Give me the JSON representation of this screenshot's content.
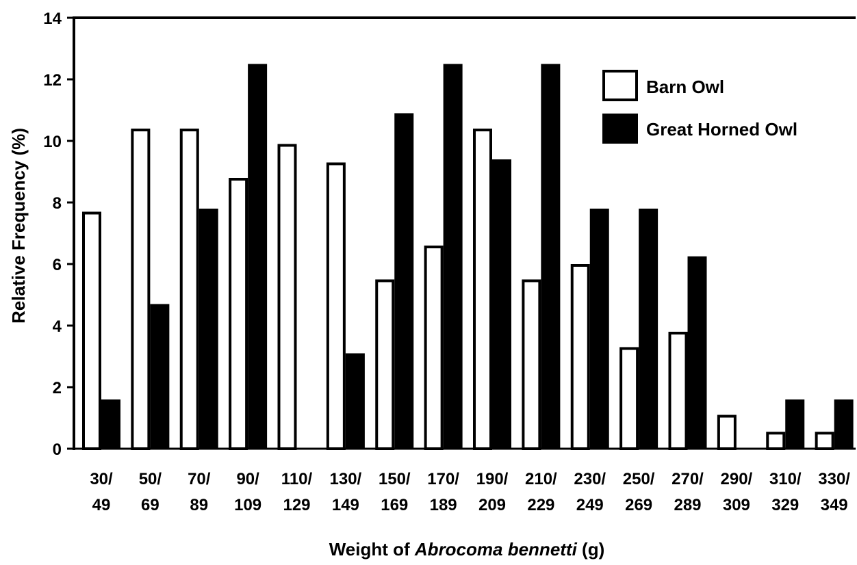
{
  "chart_data": {
    "type": "bar",
    "title": "",
    "xlabel_prefix": "Weight of ",
    "xlabel_italic": "Abrocoma bennetti",
    "xlabel_suffix": " (g)",
    "ylabel": "Relative Frequency (%)",
    "ylim": [
      0,
      14
    ],
    "yticks": [
      0,
      2,
      4,
      6,
      8,
      10,
      12,
      14
    ],
    "grid": false,
    "legend_position": "top-right",
    "categories": [
      [
        "30/",
        "49"
      ],
      [
        "50/",
        "69"
      ],
      [
        "70/",
        "89"
      ],
      [
        "90/",
        "109"
      ],
      [
        "110/",
        "129"
      ],
      [
        "130/",
        "149"
      ],
      [
        "150/",
        "169"
      ],
      [
        "170/",
        "189"
      ],
      [
        "190/",
        "209"
      ],
      [
        "210/",
        "229"
      ],
      [
        "230/",
        "249"
      ],
      [
        "250/",
        "269"
      ],
      [
        "270/",
        "289"
      ],
      [
        "290/",
        "309"
      ],
      [
        "310/",
        "329"
      ],
      [
        "330/",
        "349"
      ]
    ],
    "series": [
      {
        "name": "Barn Owl",
        "fill": "#ffffff",
        "stroke": "#000000",
        "values": [
          7.7,
          10.4,
          10.4,
          8.8,
          9.9,
          9.3,
          5.5,
          6.6,
          10.4,
          5.5,
          6.0,
          3.3,
          3.8,
          1.1,
          0.55,
          0.55
        ]
      },
      {
        "name": "Great Horned Owl",
        "fill": "#000000",
        "stroke": "#000000",
        "values": [
          1.6,
          4.7,
          7.8,
          12.5,
          0,
          3.1,
          10.9,
          12.5,
          9.4,
          12.5,
          7.8,
          7.8,
          6.25,
          0,
          1.6,
          1.6
        ]
      }
    ]
  }
}
